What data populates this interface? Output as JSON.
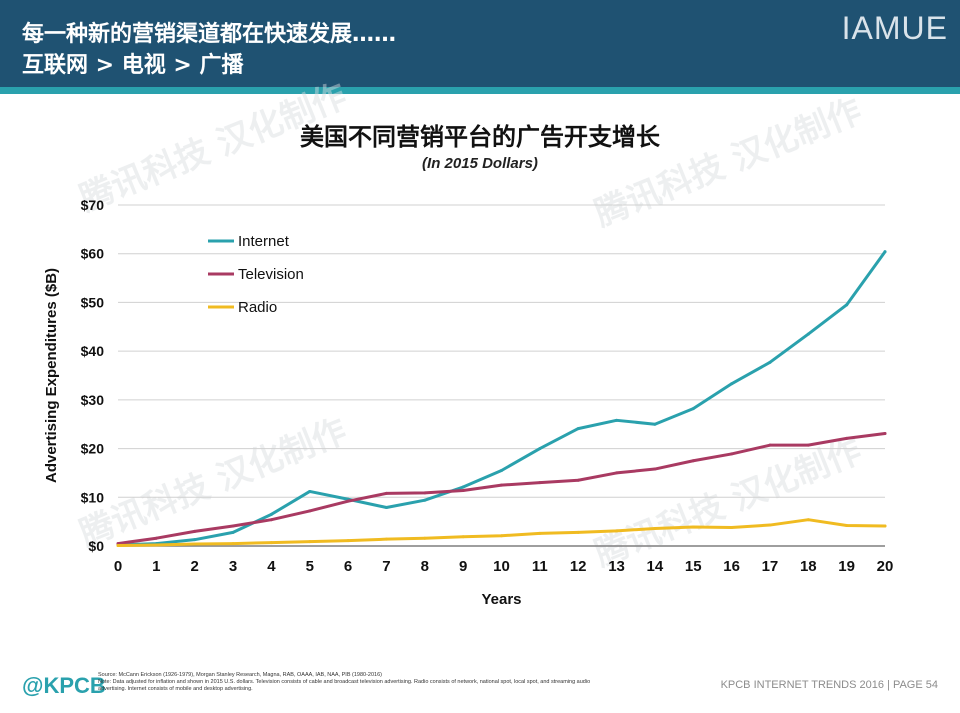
{
  "header": {
    "title_line1": "每一种新的营销渠道都在快速发展……",
    "title_line2": "互联网 > 电视 > 广播",
    "brand": "IAMUE"
  },
  "watermark_text": "腾讯科技 汉化制作",
  "chart_data": {
    "type": "line",
    "title": "美国不同营销平台的广告开支增长",
    "subtitle": "(In 2015 Dollars)",
    "xlabel": "Years",
    "ylabel": "Advertising Expenditures ($B)",
    "x": [
      0,
      1,
      2,
      3,
      4,
      5,
      6,
      7,
      8,
      9,
      10,
      11,
      12,
      13,
      14,
      15,
      16,
      17,
      18,
      19,
      20
    ],
    "ylim": [
      0,
      70
    ],
    "yticks": [
      0,
      10,
      20,
      30,
      40,
      50,
      60,
      70
    ],
    "ytick_labels": [
      "$0",
      "$10",
      "$20",
      "$30",
      "$40",
      "$50",
      "$60",
      "$70"
    ],
    "grid": true,
    "legend_position": "top-left",
    "series": [
      {
        "name": "Internet",
        "color": "#2aa1ad",
        "values": [
          0.2,
          0.5,
          1.3,
          2.8,
          6.5,
          11.2,
          9.6,
          7.9,
          9.4,
          12.1,
          15.5,
          20.0,
          24.1,
          25.8,
          25.0,
          28.2,
          33.3,
          37.7,
          43.5,
          49.5,
          60.4
        ]
      },
      {
        "name": "Television",
        "color": "#a93a62",
        "values": [
          0.5,
          1.6,
          3.0,
          4.1,
          5.4,
          7.2,
          9.2,
          10.8,
          10.9,
          11.4,
          12.5,
          13.0,
          13.5,
          15.0,
          15.8,
          17.5,
          18.9,
          20.7,
          20.7,
          22.1,
          23.1
        ]
      },
      {
        "name": "Radio",
        "color": "#f0bb21",
        "values": [
          0.1,
          0.2,
          0.4,
          0.5,
          0.7,
          0.9,
          1.1,
          1.4,
          1.6,
          1.9,
          2.1,
          2.6,
          2.8,
          3.1,
          3.6,
          3.9,
          3.8,
          4.3,
          5.4,
          4.2,
          4.1
        ]
      }
    ]
  },
  "footer": {
    "logo": "@KPCB",
    "source_line1": "Source: McCann Erickson (1926-1979), Morgan Stanley Research, Magna, RAB, OAAA, IAB, NAA, PIB (1980-2016)",
    "source_line2": "Note: Data adjusted for inflation and shown in 2015 U.S. dollars. Television consists of cable and broadcast television advertising. Radio consists of network, national spot, local spot, and streaming audio",
    "source_line3": "advertising. Internet consists of mobile and desktop advertising.",
    "page_label": "KPCB INTERNET TRENDS 2016  |  PAGE 54"
  }
}
